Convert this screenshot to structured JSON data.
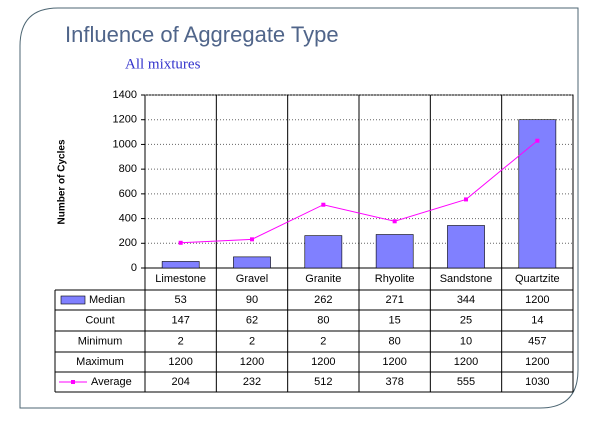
{
  "chart_data": {
    "type": "bar",
    "title": "Influence of Aggregate Type",
    "subtitle": "All mixtures",
    "y_label": "Number of Cycles",
    "categories": [
      "Limestone",
      "Gravel",
      "Granite",
      "Rhyolite",
      "Sandstone",
      "Quartzite"
    ],
    "series": [
      {
        "name": "Median",
        "type": "bar",
        "color": "#8080ff",
        "values": [
          53,
          90,
          262,
          271,
          344,
          1200
        ]
      },
      {
        "name": "Count",
        "values": [
          147,
          62,
          80,
          15,
          25,
          14
        ]
      },
      {
        "name": "Minimum",
        "values": [
          2,
          2,
          2,
          80,
          10,
          457
        ]
      },
      {
        "name": "Maximum",
        "values": [
          1200,
          1200,
          1200,
          1200,
          1200,
          1200
        ]
      },
      {
        "name": "Average",
        "type": "line",
        "color": "#ff00ff",
        "values": [
          204,
          232,
          512,
          378,
          555,
          1030
        ]
      }
    ],
    "ylim": [
      0,
      1400
    ],
    "yticks": [
      0,
      200,
      400,
      600,
      800,
      1000,
      1200,
      1400
    ],
    "grid": true
  }
}
